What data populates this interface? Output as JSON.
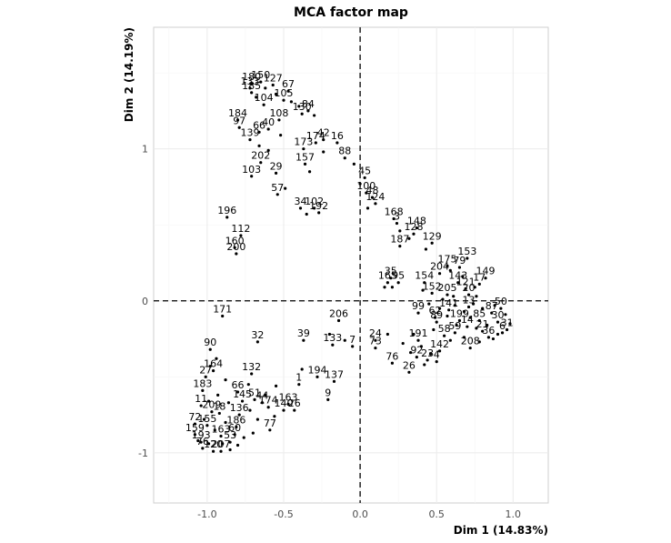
{
  "chart_data": {
    "type": "scatter",
    "title": "MCA factor map",
    "xlabel": "Dim 1 (14.83%)",
    "ylabel": "Dim 2 (14.19%)",
    "xlim": [
      -1.35,
      1.23
    ],
    "ylim": [
      -1.33,
      1.8
    ],
    "x_ticks": [
      -1.0,
      -0.5,
      0.0,
      0.5,
      1.0
    ],
    "x_tick_labels": [
      "-1.0",
      "-0.5",
      "0.0",
      "0.5",
      "1.0"
    ],
    "y_ticks": [
      -1,
      0,
      1
    ],
    "y_tick_labels": [
      "-1",
      "0",
      "1"
    ],
    "grid": true,
    "reference_lines": [
      0,
      0
    ],
    "points": [
      {
        "label": "180",
        "x": -0.71,
        "y": 1.43
      },
      {
        "label": "150",
        "x": -0.65,
        "y": 1.44
      },
      {
        "label": "133",
        "x": -0.72,
        "y": 1.4
      },
      {
        "label": "185",
        "x": -0.71,
        "y": 1.37
      },
      {
        "label": "127",
        "x": -0.57,
        "y": 1.42
      },
      {
        "label": "67",
        "x": -0.47,
        "y": 1.38
      },
      {
        "label": "105",
        "x": -0.5,
        "y": 1.32
      },
      {
        "label": "104",
        "x": -0.63,
        "y": 1.29
      },
      {
        "label": "84",
        "x": -0.34,
        "y": 1.25
      },
      {
        "label": "130",
        "x": -0.38,
        "y": 1.23
      },
      {
        "label": "108",
        "x": -0.53,
        "y": 1.19
      },
      {
        "label": "184",
        "x": -0.8,
        "y": 1.19
      },
      {
        "label": "40",
        "x": -0.6,
        "y": 1.13
      },
      {
        "label": "66",
        "x": -0.66,
        "y": 1.11
      },
      {
        "label": "97",
        "x": -0.79,
        "y": 1.14
      },
      {
        "label": "42",
        "x": -0.24,
        "y": 1.06
      },
      {
        "label": "174",
        "x": -0.29,
        "y": 1.04
      },
      {
        "label": "16",
        "x": -0.15,
        "y": 1.04
      },
      {
        "label": "139",
        "x": -0.72,
        "y": 1.06
      },
      {
        "label": "173",
        "x": -0.37,
        "y": 1.0
      },
      {
        "label": "88",
        "x": -0.1,
        "y": 0.94
      },
      {
        "label": "157",
        "x": -0.36,
        "y": 0.9
      },
      {
        "label": "202",
        "x": -0.65,
        "y": 0.91
      },
      {
        "label": "45",
        "x": 0.03,
        "y": 0.81
      },
      {
        "label": "29",
        "x": -0.55,
        "y": 0.84
      },
      {
        "label": "103",
        "x": -0.71,
        "y": 0.82
      },
      {
        "label": "100",
        "x": 0.04,
        "y": 0.71
      },
      {
        "label": "57",
        "x": -0.54,
        "y": 0.7
      },
      {
        "label": "48",
        "x": 0.08,
        "y": 0.68
      },
      {
        "label": "124",
        "x": 0.1,
        "y": 0.64
      },
      {
        "label": "34",
        "x": -0.39,
        "y": 0.61
      },
      {
        "label": "102",
        "x": -0.3,
        "y": 0.61
      },
      {
        "label": "192",
        "x": -0.27,
        "y": 0.58
      },
      {
        "label": "168",
        "x": 0.22,
        "y": 0.54
      },
      {
        "label": "196",
        "x": -0.87,
        "y": 0.55
      },
      {
        "label": "3",
        "x": 0.24,
        "y": 0.51
      },
      {
        "label": "148",
        "x": 0.37,
        "y": 0.48
      },
      {
        "label": "128",
        "x": 0.35,
        "y": 0.44
      },
      {
        "label": "112",
        "x": -0.78,
        "y": 0.43
      },
      {
        "label": "129",
        "x": 0.47,
        "y": 0.38
      },
      {
        "label": "187",
        "x": 0.26,
        "y": 0.36
      },
      {
        "label": "160",
        "x": -0.82,
        "y": 0.35
      },
      {
        "label": "200",
        "x": -0.81,
        "y": 0.31
      },
      {
        "label": "153",
        "x": 0.7,
        "y": 0.28
      },
      {
        "label": "175",
        "x": 0.57,
        "y": 0.23
      },
      {
        "label": "79",
        "x": 0.65,
        "y": 0.22
      },
      {
        "label": "204",
        "x": 0.52,
        "y": 0.18
      },
      {
        "label": "149",
        "x": 0.82,
        "y": 0.15
      },
      {
        "label": "35",
        "x": 0.2,
        "y": 0.15
      },
      {
        "label": "165",
        "x": 0.18,
        "y": 0.12
      },
      {
        "label": "95",
        "x": 0.25,
        "y": 0.12
      },
      {
        "label": "154",
        "x": 0.42,
        "y": 0.12
      },
      {
        "label": "143",
        "x": 0.64,
        "y": 0.12
      },
      {
        "label": "17",
        "x": 0.78,
        "y": 0.11
      },
      {
        "label": "121",
        "x": 0.69,
        "y": 0.08
      },
      {
        "label": "152",
        "x": 0.47,
        "y": 0.05
      },
      {
        "label": "205",
        "x": 0.57,
        "y": 0.04
      },
      {
        "label": "20",
        "x": 0.71,
        "y": 0.04
      },
      {
        "label": "171",
        "x": -0.9,
        "y": -0.1
      },
      {
        "label": "99",
        "x": 0.38,
        "y": -0.08
      },
      {
        "label": "141",
        "x": 0.58,
        "y": -0.06
      },
      {
        "label": "13",
        "x": 0.71,
        "y": -0.04
      },
      {
        "label": "206",
        "x": -0.14,
        "y": -0.13
      },
      {
        "label": "32",
        "x": -0.67,
        "y": -0.27
      },
      {
        "label": "39",
        "x": -0.37,
        "y": -0.26
      },
      {
        "label": "133",
        "x": -0.18,
        "y": -0.29
      },
      {
        "label": "7",
        "x": -0.05,
        "y": -0.3
      },
      {
        "label": "62",
        "x": 0.49,
        "y": -0.11
      },
      {
        "label": "89",
        "x": 0.5,
        "y": -0.14
      },
      {
        "label": "199",
        "x": 0.65,
        "y": -0.13
      },
      {
        "label": "85",
        "x": 0.78,
        "y": -0.13
      },
      {
        "label": "31",
        "x": 0.96,
        "y": -0.19
      },
      {
        "label": "59",
        "x": 0.62,
        "y": -0.21
      },
      {
        "label": "21",
        "x": 0.8,
        "y": -0.2
      },
      {
        "label": "6",
        "x": 0.93,
        "y": -0.21
      },
      {
        "label": "24",
        "x": 0.1,
        "y": -0.26
      },
      {
        "label": "191",
        "x": 0.38,
        "y": -0.26
      },
      {
        "label": "73",
        "x": 0.1,
        "y": -0.31
      },
      {
        "label": "142",
        "x": 0.52,
        "y": -0.33
      },
      {
        "label": "208",
        "x": 0.72,
        "y": -0.31
      },
      {
        "label": "90",
        "x": -0.98,
        "y": -0.32
      },
      {
        "label": "92",
        "x": 0.37,
        "y": -0.37
      },
      {
        "label": "23",
        "x": 0.44,
        "y": -0.39
      },
      {
        "label": "4",
        "x": 0.5,
        "y": -0.4
      },
      {
        "label": "76",
        "x": 0.21,
        "y": -0.41
      },
      {
        "label": "164",
        "x": -0.96,
        "y": -0.46
      },
      {
        "label": "26",
        "x": 0.32,
        "y": -0.47
      },
      {
        "label": "132",
        "x": -0.71,
        "y": -0.48
      },
      {
        "label": "27",
        "x": -1.01,
        "y": -0.5
      },
      {
        "label": "194",
        "x": -0.28,
        "y": -0.5
      },
      {
        "label": "1",
        "x": -0.4,
        "y": -0.55
      },
      {
        "label": "137",
        "x": -0.17,
        "y": -0.53
      },
      {
        "label": "183",
        "x": -1.03,
        "y": -0.59
      },
      {
        "label": "66",
        "x": -0.8,
        "y": -0.6
      },
      {
        "label": "145",
        "x": -0.77,
        "y": -0.66
      },
      {
        "label": "51",
        "x": -0.69,
        "y": -0.65
      },
      {
        "label": "44",
        "x": -0.64,
        "y": -0.67
      },
      {
        "label": "11",
        "x": -1.04,
        "y": -0.69
      },
      {
        "label": "174",
        "x": -0.6,
        "y": -0.7
      },
      {
        "label": "163",
        "x": -0.47,
        "y": -0.68
      },
      {
        "label": "140",
        "x": -0.5,
        "y": -0.72
      },
      {
        "label": "26",
        "x": -0.43,
        "y": -0.72
      },
      {
        "label": "9",
        "x": -0.21,
        "y": -0.65
      },
      {
        "label": "209",
        "x": -0.97,
        "y": -0.73
      },
      {
        "label": "18",
        "x": -0.92,
        "y": -0.74
      },
      {
        "label": "136",
        "x": -0.79,
        "y": -0.75
      },
      {
        "label": "72",
        "x": -1.08,
        "y": -0.81
      },
      {
        "label": "155",
        "x": -1.0,
        "y": -0.82
      },
      {
        "label": "186",
        "x": -0.81,
        "y": -0.83
      },
      {
        "label": "77",
        "x": -0.59,
        "y": -0.85
      },
      {
        "label": "159",
        "x": -1.08,
        "y": -0.88
      },
      {
        "label": "163",
        "x": -0.91,
        "y": -0.89
      },
      {
        "label": "60",
        "x": -0.82,
        "y": -0.88
      },
      {
        "label": "193",
        "x": -1.04,
        "y": -0.93
      },
      {
        "label": "53",
        "x": -0.85,
        "y": -0.93
      },
      {
        "label": "76",
        "x": -1.03,
        "y": -0.97
      },
      {
        "label": "120",
        "x": -0.96,
        "y": -0.99
      },
      {
        "label": "207",
        "x": -0.91,
        "y": -0.99
      },
      {
        "label": "50",
        "x": 0.92,
        "y": -0.05
      },
      {
        "label": "87",
        "x": 0.86,
        "y": -0.08
      },
      {
        "label": "30",
        "x": 0.9,
        "y": -0.14
      },
      {
        "label": "14",
        "x": 0.7,
        "y": -0.17
      },
      {
        "label": "36",
        "x": 0.84,
        "y": -0.24
      },
      {
        "label": "58",
        "x": 0.55,
        "y": -0.23
      }
    ],
    "extra_points": [
      [
        -0.68,
        1.34
      ],
      [
        -0.62,
        1.4
      ],
      [
        -0.55,
        1.36
      ],
      [
        -0.45,
        1.31
      ],
      [
        -0.4,
        1.28
      ],
      [
        -0.3,
        1.22
      ],
      [
        -0.66,
        1.02
      ],
      [
        -0.52,
        1.09
      ],
      [
        -0.6,
        0.99
      ],
      [
        -0.24,
        0.98
      ],
      [
        -0.33,
        0.85
      ],
      [
        -0.04,
        0.9
      ],
      [
        0.0,
        0.77
      ],
      [
        -0.49,
        0.74
      ],
      [
        0.05,
        0.61
      ],
      [
        -0.35,
        0.57
      ],
      [
        0.26,
        0.46
      ],
      [
        0.32,
        0.41
      ],
      [
        0.43,
        0.34
      ],
      [
        0.59,
        0.2
      ],
      [
        0.67,
        0.16
      ],
      [
        0.75,
        0.09
      ],
      [
        0.16,
        0.09
      ],
      [
        0.21,
        0.09
      ],
      [
        0.41,
        0.07
      ],
      [
        0.54,
        0.01
      ],
      [
        0.61,
        0.03
      ],
      [
        0.76,
        0.03
      ],
      [
        0.45,
        -0.02
      ],
      [
        0.52,
        -0.05
      ],
      [
        0.62,
        -0.03
      ],
      [
        0.68,
        -0.07
      ],
      [
        0.74,
        -0.02
      ],
      [
        0.8,
        -0.05
      ],
      [
        0.88,
        -0.03
      ],
      [
        0.95,
        -0.09
      ],
      [
        0.57,
        -0.1
      ],
      [
        0.63,
        -0.16
      ],
      [
        0.72,
        -0.11
      ],
      [
        0.76,
        -0.18
      ],
      [
        0.83,
        -0.16
      ],
      [
        0.9,
        -0.22
      ],
      [
        0.98,
        -0.15
      ],
      [
        0.59,
        -0.26
      ],
      [
        0.68,
        -0.24
      ],
      [
        0.78,
        -0.27
      ],
      [
        0.87,
        -0.25
      ],
      [
        0.48,
        -0.19
      ],
      [
        0.4,
        -0.3
      ],
      [
        0.35,
        -0.22
      ],
      [
        0.18,
        -0.22
      ],
      [
        0.28,
        -0.28
      ],
      [
        0.33,
        -0.34
      ],
      [
        0.46,
        -0.35
      ],
      [
        0.42,
        -0.42
      ],
      [
        -0.1,
        -0.26
      ],
      [
        -0.2,
        -0.22
      ],
      [
        -0.38,
        -0.45
      ],
      [
        -0.55,
        -0.56
      ],
      [
        -0.73,
        -0.55
      ],
      [
        -0.88,
        -0.52
      ],
      [
        -0.93,
        -0.62
      ],
      [
        -0.86,
        -0.67
      ],
      [
        -0.72,
        -0.72
      ],
      [
        -0.67,
        -0.78
      ],
      [
        -0.56,
        -0.76
      ],
      [
        -0.99,
        -0.66
      ],
      [
        -1.02,
        -0.78
      ],
      [
        -0.95,
        -0.85
      ],
      [
        -0.88,
        -0.8
      ],
      [
        -0.76,
        -0.9
      ],
      [
        -0.7,
        -0.87
      ],
      [
        -1.06,
        -0.92
      ],
      [
        -0.99,
        -0.94
      ],
      [
        -0.9,
        -0.94
      ],
      [
        -0.85,
        -0.98
      ],
      [
        -0.8,
        -0.95
      ],
      [
        -0.94,
        -0.38
      ],
      [
        -0.98,
        -0.43
      ],
      [
        -0.62,
        -0.62
      ]
    ]
  }
}
